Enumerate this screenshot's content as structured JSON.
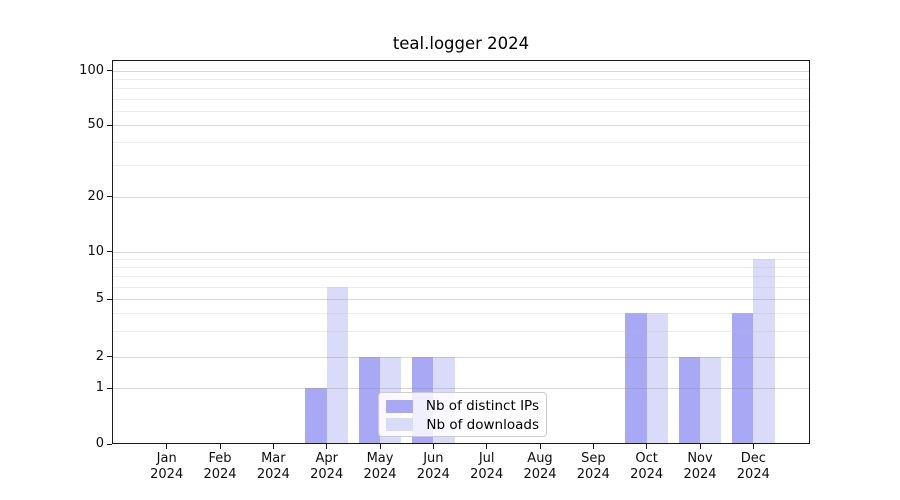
{
  "title": "teal.logger 2024",
  "chart_data": {
    "type": "bar",
    "title": "teal.logger 2024",
    "months": [
      "Jan",
      "Feb",
      "Mar",
      "Apr",
      "May",
      "Jun",
      "Jul",
      "Aug",
      "Sep",
      "Oct",
      "Nov",
      "Dec"
    ],
    "year_label": "2024",
    "series": [
      {
        "name": "Nb of distinct IPs",
        "color": "#a8a8f5",
        "values": [
          0,
          0,
          0,
          1,
          2,
          2,
          0,
          0,
          0,
          4,
          2,
          4
        ]
      },
      {
        "name": "Nb of downloads",
        "color": "#dadaf9",
        "values": [
          0,
          0,
          0,
          6,
          2,
          2,
          0,
          0,
          0,
          4,
          2,
          9
        ]
      }
    ],
    "y_axis": {
      "scale": "symlog (linear 0-1, log above 1)",
      "major_ticks": [
        0,
        1,
        2,
        5,
        10,
        20,
        50,
        100
      ],
      "minor_ticks": [
        3,
        4,
        6,
        7,
        8,
        9,
        30,
        40,
        60,
        70,
        80,
        90
      ],
      "ylim": [
        0,
        113
      ]
    },
    "legend": {
      "position": "lower center",
      "entries": [
        "Nb of distinct IPs",
        "Nb of downloads"
      ]
    },
    "grid": "on"
  }
}
